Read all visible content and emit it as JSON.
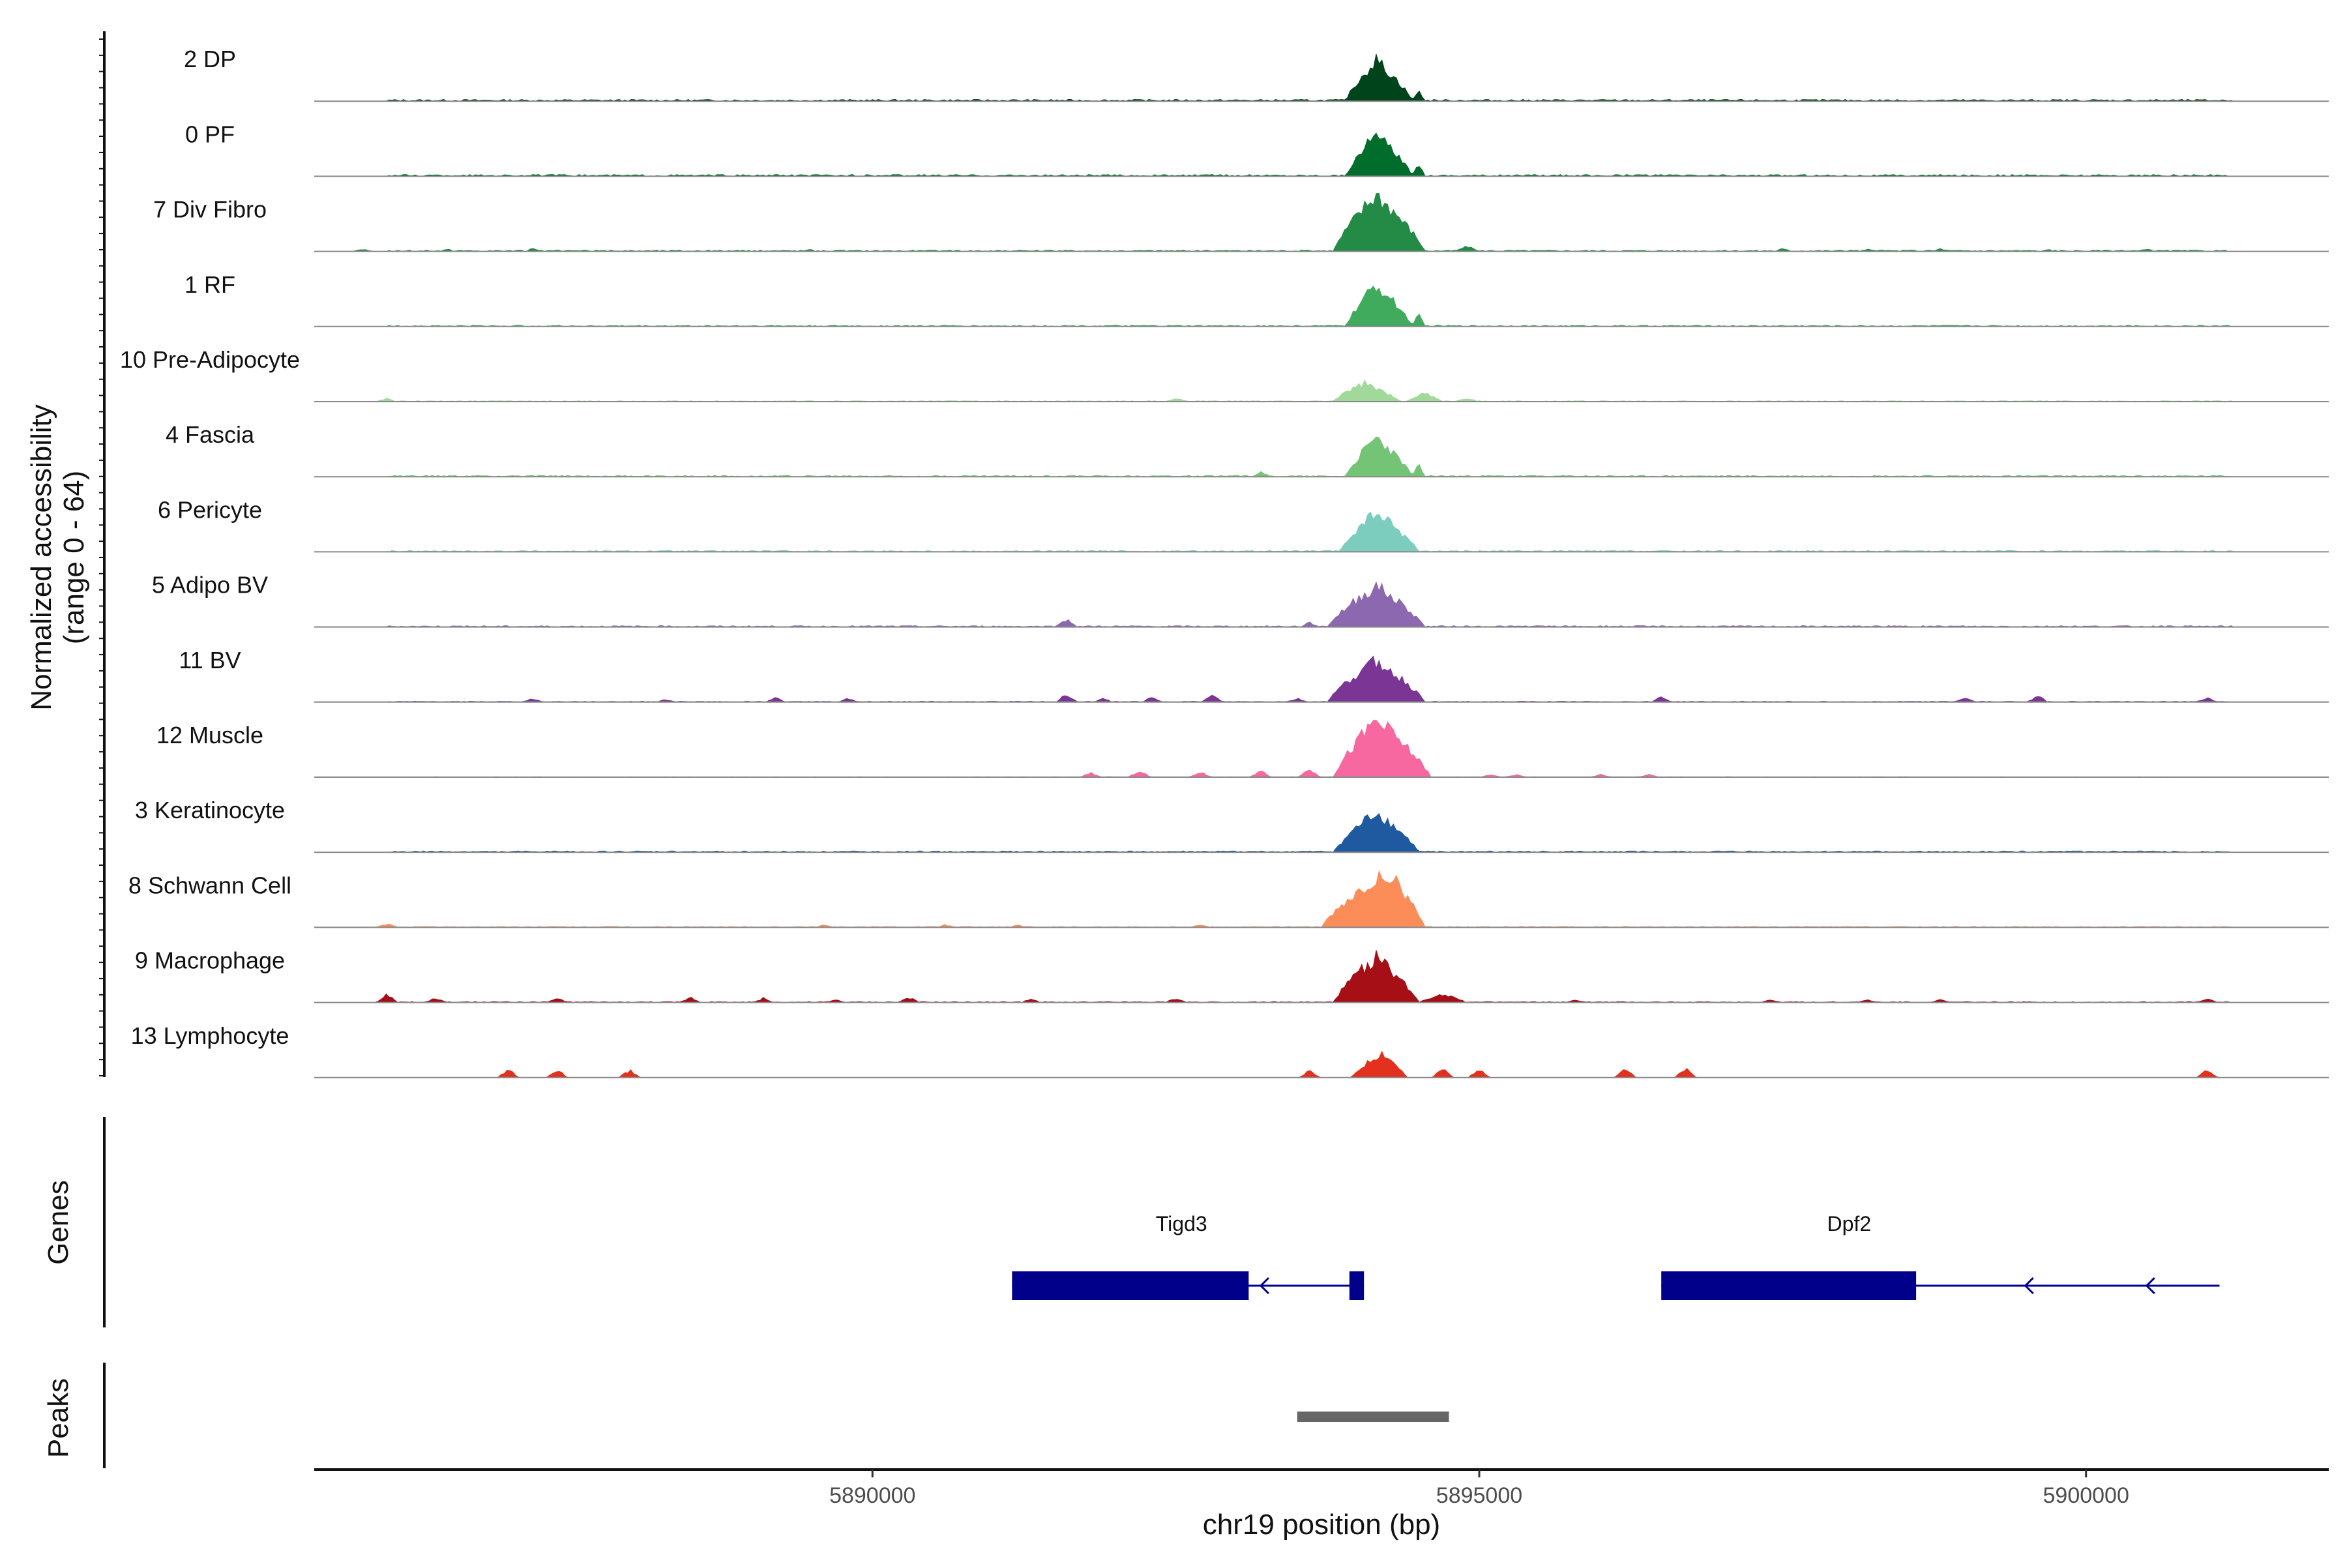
{
  "chart_data": {
    "type": "area",
    "ylabel": "Normalized accessibility",
    "ylabel_range": "(range 0 - 64)",
    "ylim": [
      0,
      64
    ],
    "xlabel": "chr19 position (bp)",
    "xlim": [
      5885400,
      5902000
    ],
    "xticks": [
      5890000,
      5895000,
      5900000
    ],
    "xtick_labels": [
      "5890000",
      "5895000",
      "5900000"
    ],
    "genes_label": "Genes",
    "peaks_label": "Peaks",
    "tracks": [
      {
        "name": "2 DP",
        "color": "#00441b",
        "peaks": [
          [
            5893900,
            5894150,
            5894450,
            1.0
          ],
          [
            5894450,
            5894500,
            5894550,
            0.25
          ]
        ],
        "noise": [],
        "baseline": 0.04
      },
      {
        "name": "0 PF",
        "color": "#006d2c",
        "peaks": [
          [
            5893900,
            5894150,
            5894450,
            1.0
          ],
          [
            5894450,
            5894500,
            5894550,
            0.3
          ]
        ],
        "noise": [],
        "baseline": 0.04
      },
      {
        "name": "7 Div Fibro",
        "color": "#238b45",
        "peaks": [
          [
            5893800,
            5894150,
            5894550,
            1.4
          ],
          [
            5894800,
            5894900,
            5895000,
            0.12
          ]
        ],
        "noise": [
          [
            5885800,
            0.05
          ],
          [
            5886500,
            0.05
          ],
          [
            5887200,
            0.06
          ],
          [
            5889500,
            0.05
          ],
          [
            5897500,
            0.06
          ],
          [
            5898200,
            0.05
          ],
          [
            5898800,
            0.06
          ],
          [
            5899700,
            0.05
          ],
          [
            5900500,
            0.05
          ]
        ],
        "baseline": 0.03
      },
      {
        "name": "1 RF",
        "color": "#41ab5d",
        "peaks": [
          [
            5893900,
            5894150,
            5894450,
            1.0
          ],
          [
            5894450,
            5894500,
            5894550,
            0.28
          ]
        ],
        "noise": [],
        "baseline": 0.03
      },
      {
        "name": "10 Pre-Adipocyte",
        "color": "#a1d99b",
        "peaks": [
          [
            5893800,
            5894050,
            5894350,
            0.45
          ],
          [
            5894400,
            5894550,
            5894700,
            0.2
          ],
          [
            5894800,
            5894900,
            5895000,
            0.08
          ]
        ],
        "noise": [
          [
            5886000,
            0.08
          ],
          [
            5892500,
            0.08
          ]
        ],
        "baseline": 0.02
      },
      {
        "name": "4 Fascia",
        "color": "#74c476",
        "peaks": [
          [
            5893900,
            5894150,
            5894450,
            0.95
          ],
          [
            5894450,
            5894500,
            5894550,
            0.28
          ]
        ],
        "noise": [
          [
            5893200,
            0.1
          ]
        ],
        "baseline": 0.03
      },
      {
        "name": "6 Pericyte",
        "color": "#7dcdbf",
        "peaks": [
          [
            5893850,
            5894150,
            5894500,
            0.95
          ]
        ],
        "noise": [],
        "baseline": 0.03
      },
      {
        "name": "5 Adipo BV",
        "color": "#8b68af",
        "peaks": [
          [
            5893750,
            5894150,
            5894550,
            1.0
          ]
        ],
        "noise": [
          [
            5891600,
            0.18
          ],
          [
            5893600,
            0.1
          ]
        ],
        "baseline": 0.03
      },
      {
        "name": "11 BV",
        "color": "#7b3594",
        "peaks": [
          [
            5893750,
            5894150,
            5894550,
            1.0
          ]
        ],
        "noise": [
          [
            5887200,
            0.08
          ],
          [
            5888300,
            0.06
          ],
          [
            5889200,
            0.1
          ],
          [
            5889800,
            0.08
          ],
          [
            5891600,
            0.2
          ],
          [
            5891900,
            0.08
          ],
          [
            5892300,
            0.1
          ],
          [
            5892800,
            0.15
          ],
          [
            5893500,
            0.08
          ],
          [
            5896500,
            0.12
          ],
          [
            5899000,
            0.1
          ],
          [
            5899600,
            0.14
          ],
          [
            5901000,
            0.1
          ]
        ],
        "baseline": 0.02
      },
      {
        "name": "12 Muscle",
        "color": "#f768a1",
        "peaks": [
          [
            5893800,
            5894150,
            5894600,
            1.4
          ]
        ],
        "noise": [
          [
            5891800,
            0.1
          ],
          [
            5892200,
            0.16
          ],
          [
            5892700,
            0.12
          ],
          [
            5893200,
            0.14
          ],
          [
            5893600,
            0.2
          ],
          [
            5895100,
            0.06
          ],
          [
            5895300,
            0.06
          ],
          [
            5896000,
            0.06
          ],
          [
            5896400,
            0.06
          ]
        ],
        "baseline": 0.01
      },
      {
        "name": "3 Keratinocyte",
        "color": "#1f5aa0",
        "peaks": [
          [
            5893800,
            5894150,
            5894500,
            0.95
          ]
        ],
        "noise": [],
        "baseline": 0.03
      },
      {
        "name": "8 Schwann Cell",
        "color": "#fc8d59",
        "peaks": [
          [
            5893700,
            5894250,
            5894550,
            1.3
          ]
        ],
        "noise": [
          [
            5886000,
            0.08
          ],
          [
            5889600,
            0.06
          ],
          [
            5890600,
            0.06
          ],
          [
            5891200,
            0.05
          ],
          [
            5892700,
            0.06
          ]
        ],
        "baseline": 0.02
      },
      {
        "name": "9 Macrophage",
        "color": "#a50f15",
        "peaks": [
          [
            5893800,
            5894150,
            5894500,
            1.1
          ],
          [
            5894500,
            5894700,
            5894900,
            0.2
          ]
        ],
        "noise": [
          [
            5886000,
            0.18
          ],
          [
            5886400,
            0.1
          ],
          [
            5887400,
            0.1
          ],
          [
            5888500,
            0.12
          ],
          [
            5889100,
            0.1
          ],
          [
            5889700,
            0.06
          ],
          [
            5890300,
            0.12
          ],
          [
            5891300,
            0.08
          ],
          [
            5892500,
            0.1
          ],
          [
            5895800,
            0.06
          ],
          [
            5897400,
            0.06
          ],
          [
            5898200,
            0.06
          ],
          [
            5898800,
            0.06
          ],
          [
            5901000,
            0.08
          ]
        ],
        "baseline": 0.02
      },
      {
        "name": "13 Lymphocyte",
        "color": "#e3311d",
        "peaks": [
          [
            5893950,
            5894200,
            5894400,
            0.6
          ]
        ],
        "noise": [
          [
            5887000,
            0.18
          ],
          [
            5887400,
            0.2
          ],
          [
            5888000,
            0.18
          ],
          [
            5893600,
            0.15
          ],
          [
            5894700,
            0.2
          ],
          [
            5895000,
            0.22
          ],
          [
            5896200,
            0.22
          ],
          [
            5896700,
            0.2
          ],
          [
            5901000,
            0.2
          ]
        ],
        "baseline": 0.0
      }
    ],
    "genes": [
      {
        "name": "Tigd3",
        "color": "#00008b",
        "start": 5891150,
        "end": 5894050,
        "exons": [
          [
            5891150,
            5893100,
            "thick"
          ],
          [
            5893930,
            5894050,
            "thick"
          ]
        ],
        "arrows": [
          5893200
        ]
      },
      {
        "name": "Dpf2",
        "color": "#00008b",
        "start": 5896500,
        "end": 5901100,
        "exons": [
          [
            5896500,
            5898600,
            "thick"
          ]
        ],
        "arrows": [
          5899500,
          5900500
        ]
      }
    ],
    "peaks_track": [
      {
        "start": 5893500,
        "end": 5894750,
        "color": "#666666"
      }
    ]
  }
}
